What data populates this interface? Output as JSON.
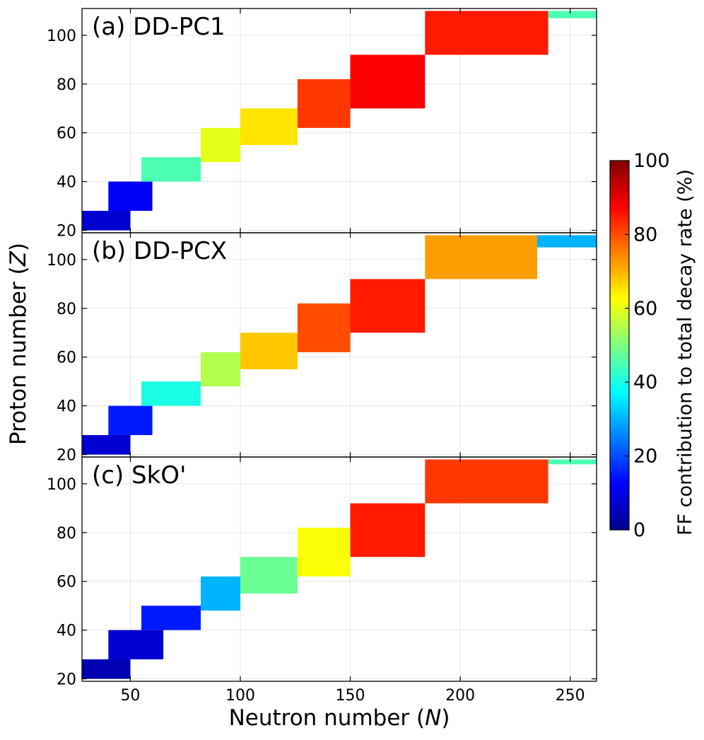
{
  "chart_data": {
    "type": "heatmap",
    "xlabel_prefix": "Neutron number (",
    "xlabel_var": "N",
    "xlabel_suffix": ")",
    "ylabel_prefix": "Proton number (",
    "ylabel_var": "Z",
    "ylabel_suffix": ")",
    "xlim": [
      28,
      262
    ],
    "ylim": [
      19,
      111
    ],
    "x_ticks": [
      50,
      100,
      150,
      200,
      250
    ],
    "x_tick_labels": [
      "50",
      "100",
      "150",
      "200",
      "250"
    ],
    "y_ticks": [
      20,
      40,
      60,
      80,
      100
    ],
    "y_tick_labels": [
      "20",
      "40",
      "60",
      "80",
      "100"
    ],
    "grid": true,
    "colorbar": {
      "label": "FF contribution to total decay rate (%)",
      "range": [
        0,
        100
      ],
      "ticks": [
        0,
        20,
        40,
        60,
        80,
        100
      ],
      "tick_labels": [
        "0",
        "20",
        "40",
        "60",
        "80",
        "100"
      ],
      "colormap": "jet"
    },
    "panels": [
      {
        "label": "(a) DD-PC1",
        "model": "DD-PC1",
        "regions": [
          {
            "z_min": 20,
            "z_max": 28,
            "n_min": 28,
            "n_max": 50,
            "ff_percent": 8
          },
          {
            "z_min": 28,
            "z_max": 40,
            "n_min": 40,
            "n_max": 60,
            "ff_percent": 12
          },
          {
            "z_min": 40,
            "z_max": 50,
            "n_min": 55,
            "n_max": 82,
            "ff_percent": 45
          },
          {
            "z_min": 48,
            "z_max": 62,
            "n_min": 82,
            "n_max": 100,
            "ff_percent": 60
          },
          {
            "z_min": 55,
            "z_max": 70,
            "n_min": 100,
            "n_max": 126,
            "ff_percent": 65
          },
          {
            "z_min": 62,
            "z_max": 82,
            "n_min": 126,
            "n_max": 150,
            "ff_percent": 82
          },
          {
            "z_min": 70,
            "z_max": 92,
            "n_min": 150,
            "n_max": 184,
            "ff_percent": 88
          },
          {
            "z_min": 92,
            "z_max": 110,
            "n_min": 184,
            "n_max": 240,
            "ff_percent": 85
          },
          {
            "z_min": 107,
            "z_max": 110,
            "n_min": 240,
            "n_max": 262,
            "ff_percent": 45
          }
        ]
      },
      {
        "label": "(b) DD-PCX",
        "model": "DD-PCX",
        "regions": [
          {
            "z_min": 20,
            "z_max": 28,
            "n_min": 28,
            "n_max": 50,
            "ff_percent": 8
          },
          {
            "z_min": 28,
            "z_max": 40,
            "n_min": 40,
            "n_max": 60,
            "ff_percent": 15
          },
          {
            "z_min": 40,
            "z_max": 50,
            "n_min": 55,
            "n_max": 82,
            "ff_percent": 40
          },
          {
            "z_min": 48,
            "z_max": 62,
            "n_min": 82,
            "n_max": 100,
            "ff_percent": 55
          },
          {
            "z_min": 55,
            "z_max": 70,
            "n_min": 100,
            "n_max": 126,
            "ff_percent": 68
          },
          {
            "z_min": 62,
            "z_max": 82,
            "n_min": 126,
            "n_max": 150,
            "ff_percent": 80
          },
          {
            "z_min": 70,
            "z_max": 92,
            "n_min": 150,
            "n_max": 184,
            "ff_percent": 85
          },
          {
            "z_min": 92,
            "z_max": 110,
            "n_min": 184,
            "n_max": 235,
            "ff_percent": 72
          },
          {
            "z_min": 105,
            "z_max": 110,
            "n_min": 235,
            "n_max": 262,
            "ff_percent": 30
          }
        ]
      },
      {
        "label": "(c) SkO'",
        "model": "SkO'",
        "regions": [
          {
            "z_min": 20,
            "z_max": 28,
            "n_min": 28,
            "n_max": 50,
            "ff_percent": 5
          },
          {
            "z_min": 28,
            "z_max": 40,
            "n_min": 40,
            "n_max": 65,
            "ff_percent": 8
          },
          {
            "z_min": 40,
            "z_max": 50,
            "n_min": 55,
            "n_max": 82,
            "ff_percent": 15
          },
          {
            "z_min": 48,
            "z_max": 62,
            "n_min": 82,
            "n_max": 100,
            "ff_percent": 30
          },
          {
            "z_min": 55,
            "z_max": 70,
            "n_min": 100,
            "n_max": 126,
            "ff_percent": 48
          },
          {
            "z_min": 62,
            "z_max": 82,
            "n_min": 126,
            "n_max": 150,
            "ff_percent": 62
          },
          {
            "z_min": 70,
            "z_max": 92,
            "n_min": 150,
            "n_max": 184,
            "ff_percent": 85
          },
          {
            "z_min": 92,
            "z_max": 110,
            "n_min": 184,
            "n_max": 240,
            "ff_percent": 82
          },
          {
            "z_min": 108,
            "z_max": 110,
            "n_min": 240,
            "n_max": 262,
            "ff_percent": 45
          }
        ]
      }
    ]
  }
}
